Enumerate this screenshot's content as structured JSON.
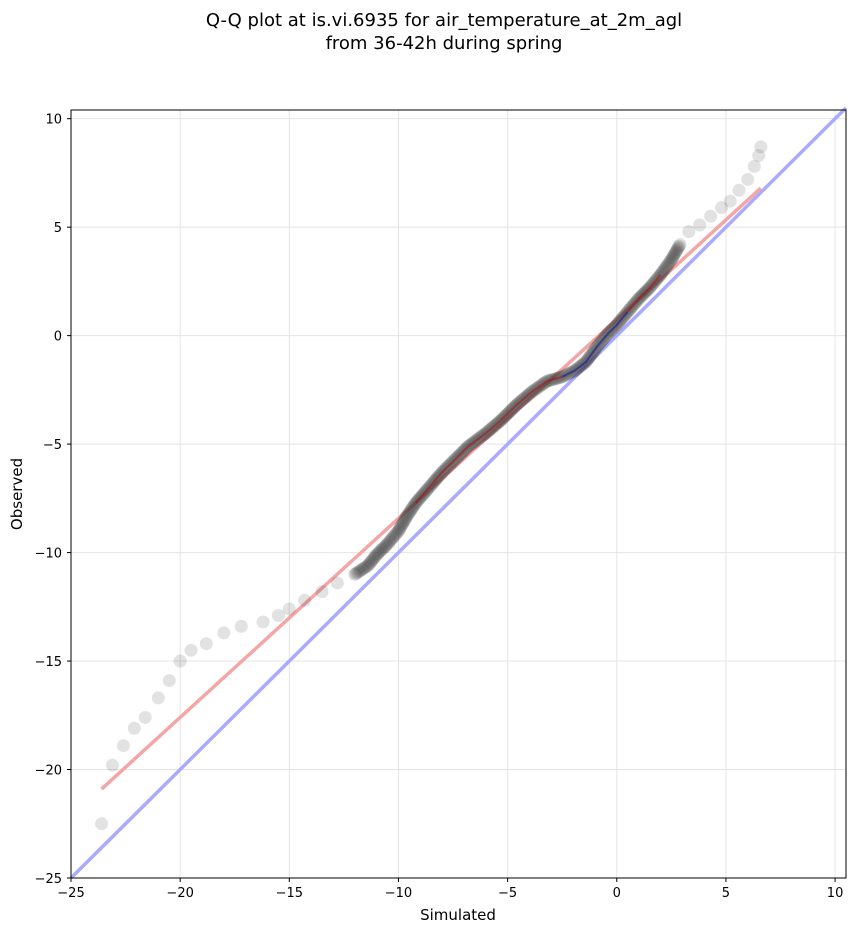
{
  "chart_data": {
    "type": "scatter",
    "title_line1": "Q-Q plot at is.vi.6935 for air_temperature_at_2m_agl",
    "title_line2": "from 36-42h during spring",
    "xlabel": "Simulated",
    "ylabel": "Observed",
    "xlim": [
      -25,
      10.5
    ],
    "ylim": [
      -25,
      10.4
    ],
    "xticks": [
      -25,
      -20,
      -15,
      -10,
      -5,
      0,
      5,
      10
    ],
    "yticks": [
      -25,
      -20,
      -15,
      -10,
      -5,
      0,
      5,
      10
    ],
    "grid": true,
    "colors": {
      "points": "#333333",
      "reference_line": "#aaaaff",
      "fit_line": "#f4a6a6",
      "highlight_red": "#b01010",
      "highlight_blue": "#1010a0"
    },
    "reference_line": {
      "x": [
        -25,
        10.5
      ],
      "y": [
        -25,
        10.5
      ]
    },
    "fit_line": {
      "x": [
        -23.6,
        6.6
      ],
      "y": [
        -20.9,
        6.8
      ]
    },
    "quantile_curve": {
      "x": [
        -23.6,
        -23.1,
        -22.6,
        -22.1,
        -21.6,
        -21.0,
        -20.5,
        -20.0,
        -19.5,
        -18.8,
        -18.0,
        -17.2,
        -16.2,
        -15.5,
        -15.0,
        -14.3,
        -13.5,
        -12.8,
        -12.0,
        -11.4,
        -11.0,
        -10.5,
        -10.0,
        -9.6,
        -9.2,
        -8.6,
        -8.0,
        -7.4,
        -6.8,
        -6.0,
        -5.3,
        -4.6,
        -3.9,
        -3.2,
        -2.5,
        -1.9,
        -1.4,
        -0.9,
        -0.4,
        0.0,
        0.5,
        1.0,
        1.5,
        2.0,
        2.5,
        2.9,
        3.3,
        3.8,
        4.3,
        4.8,
        5.2,
        5.6,
        6.0,
        6.3,
        6.5,
        6.6
      ],
      "y": [
        -22.5,
        -19.8,
        -18.9,
        -18.1,
        -17.6,
        -16.7,
        -15.9,
        -15.0,
        -14.5,
        -14.2,
        -13.7,
        -13.4,
        -13.2,
        -12.9,
        -12.6,
        -12.2,
        -11.8,
        -11.4,
        -11.0,
        -10.6,
        -10.1,
        -9.6,
        -9.0,
        -8.3,
        -7.7,
        -7.0,
        -6.3,
        -5.7,
        -5.1,
        -4.5,
        -3.9,
        -3.2,
        -2.6,
        -2.1,
        -1.9,
        -1.6,
        -1.2,
        -0.5,
        0.1,
        0.5,
        1.1,
        1.7,
        2.2,
        2.8,
        3.5,
        4.2,
        4.8,
        5.1,
        5.5,
        5.9,
        6.2,
        6.7,
        7.2,
        7.8,
        8.3,
        8.7
      ]
    }
  }
}
